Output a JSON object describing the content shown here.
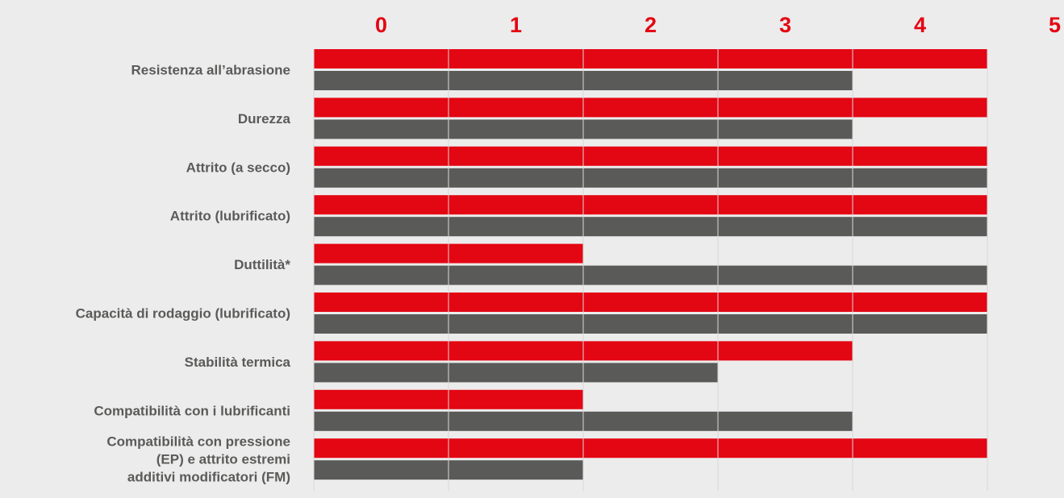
{
  "chart_data": {
    "type": "bar",
    "orientation": "horizontal",
    "categories": [
      [
        "Resistenza all’abrasione"
      ],
      [
        "Durezza"
      ],
      [
        "Attrito (a secco)"
      ],
      [
        "Attrito (lubrificato)"
      ],
      [
        "Duttilità*"
      ],
      [
        "Capacità di rodaggio (lubrificato)"
      ],
      [
        "Stabilità termica"
      ],
      [
        "Compatibilità con i lubrificanti"
      ],
      [
        "Compatibilità con pressione",
        "(EP) e attrito estremi",
        "additivi modificatori (FM)"
      ]
    ],
    "series": [
      {
        "color": "#e30613",
        "values": [
          5,
          5,
          5,
          5,
          2,
          5,
          4,
          2,
          5
        ]
      },
      {
        "color": "#5a5a59",
        "values": [
          4,
          4,
          5,
          5,
          5,
          5,
          3,
          4,
          2
        ]
      }
    ],
    "x_ticks": [
      "0",
      "1",
      "2",
      "3",
      "4",
      "5"
    ],
    "xlim": [
      0,
      5
    ],
    "tick_label_color": "#e30613",
    "category_label_color": "#5a5a59",
    "gridline_color": "#d9d9d9",
    "legend": "none"
  }
}
